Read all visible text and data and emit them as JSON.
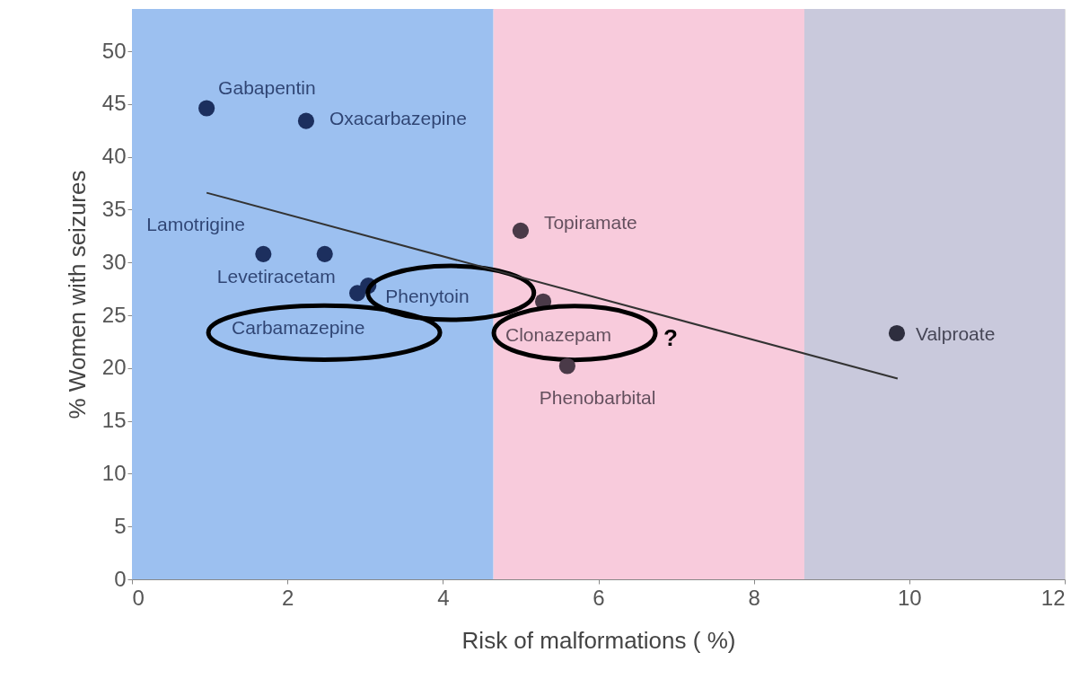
{
  "chart_data": {
    "type": "scatter",
    "xlabel": "Risk of malformations ( %)",
    "ylabel": "% Women with seizures",
    "xlim": [
      0,
      12
    ],
    "ylim": [
      0,
      54
    ],
    "xticks": [
      0,
      2,
      4,
      6,
      8,
      10,
      12
    ],
    "yticks": [
      0,
      5,
      10,
      15,
      20,
      25,
      30,
      35,
      40,
      45,
      50
    ],
    "grid": false,
    "marker": "circle",
    "bands": [
      {
        "axis": "x",
        "from": 0,
        "to": 4.65,
        "color": "#9cc0f0"
      },
      {
        "axis": "x",
        "from": 4.65,
        "to": 8.65,
        "color": "#f8cbdc"
      },
      {
        "axis": "x",
        "from": 8.65,
        "to": 12,
        "color": "#c9c9dc"
      }
    ],
    "annotations": [
      "?"
    ],
    "series": [
      {
        "name": "Gabapentin",
        "color": "#1c2f5e",
        "x": [
          0.96
        ],
        "values": [
          44.6
        ]
      },
      {
        "name": "Oxacarbazepine",
        "color": "#1c2f5e",
        "x": [
          2.24
        ],
        "values": [
          43.4
        ]
      },
      {
        "name": "Lamotrigine",
        "color": "#1c2f5e",
        "x": [
          1.69
        ],
        "values": [
          30.8
        ]
      },
      {
        "name": "Levetiracetam",
        "color": "#1c2f5e",
        "x": [
          2.48
        ],
        "values": [
          30.8
        ]
      },
      {
        "name": "Carbamazepine",
        "color": "#1c2f5e",
        "x": [
          2.9
        ],
        "values": [
          27.1
        ]
      },
      {
        "name": "Phenytoin",
        "color": "#1c2f5e",
        "x": [
          3.04
        ],
        "values": [
          27.8
        ]
      },
      {
        "name": "Topiramate",
        "color": "#4a3a48",
        "x": [
          5.0
        ],
        "values": [
          33.0
        ]
      },
      {
        "name": "Clonazepam",
        "color": "#4a3a48",
        "x": [
          5.29
        ],
        "values": [
          26.3
        ]
      },
      {
        "name": "Phenobarbital",
        "color": "#4a3a48",
        "x": [
          5.6
        ],
        "values": [
          20.2
        ]
      },
      {
        "name": "Valproate",
        "color": "#2e2e3e",
        "x": [
          9.84
        ],
        "values": [
          23.3
        ]
      },
      {
        "type": "line",
        "marker": "none",
        "color": "#333333",
        "x": [
          0.96,
          9.85
        ],
        "values": [
          36.6,
          19.0
        ]
      }
    ]
  }
}
